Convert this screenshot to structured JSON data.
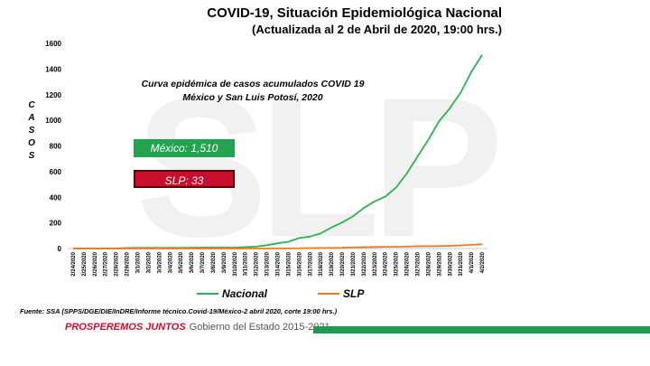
{
  "header": {
    "title": "COVID-19, Situación Epidemiológica Nacional",
    "subtitle": "(Actualizada al 2 de Abril de 2020, 19:00 hrs.)"
  },
  "watermark": "SLP",
  "colors": {
    "nacional": "#2bb34f",
    "slp": "#f07a22",
    "green_box": "#23a350",
    "red_box": "#c8102e"
  },
  "boxes": {
    "mexico": "México: 1,510",
    "slp": "SLP: 33"
  },
  "chart_data": {
    "type": "line",
    "title": "Curva epidémica de casos acumulados COVID 19",
    "subtitle": "México y San Luis Potosí, 2020",
    "ylabel": "CASOS",
    "ylabel_letters": [
      "C",
      "A",
      "S",
      "O",
      "S"
    ],
    "xlabel": "",
    "ylim": [
      0,
      1600
    ],
    "yticks": [
      0,
      200,
      400,
      600,
      800,
      1000,
      1200,
      1400,
      1600
    ],
    "categories": [
      "2/24/2020",
      "2/25/2020",
      "2/26/2020",
      "2/27/2020",
      "2/28/2020",
      "2/29/2020",
      "3/1/2020",
      "3/2/2020",
      "3/3/2020",
      "3/4/2020",
      "3/5/2020",
      "3/6/2020",
      "3/7/2020",
      "3/8/2020",
      "3/9/2020",
      "3/10/2020",
      "3/11/2020",
      "3/12/2020",
      "3/13/2020",
      "3/14/2020",
      "3/15/2020",
      "3/16/2020",
      "3/17/2020",
      "3/18/2020",
      "3/19/2020",
      "3/20/2020",
      "3/21/2020",
      "3/22/2020",
      "3/23/2020",
      "3/24/2020",
      "3/25/2020",
      "3/26/2020",
      "3/27/2020",
      "3/28/2020",
      "3/29/2020",
      "3/30/2020",
      "3/31/2020",
      "4/1/2020",
      "4/2/2020"
    ],
    "series": [
      {
        "name": "Nacional",
        "values": [
          0,
          0,
          0,
          0,
          1,
          4,
          5,
          5,
          5,
          5,
          5,
          6,
          7,
          7,
          7,
          7,
          11,
          15,
          26,
          41,
          53,
          82,
          93,
          118,
          164,
          203,
          251,
          316,
          367,
          405,
          475,
          585,
          717,
          848,
          993,
          1094,
          1215,
          1378,
          1510
        ]
      },
      {
        "name": "SLP",
        "values": [
          0,
          0,
          0,
          0,
          0,
          0,
          0,
          0,
          0,
          0,
          0,
          0,
          0,
          0,
          0,
          0,
          0,
          0,
          0,
          1,
          1,
          2,
          3,
          4,
          5,
          6,
          9,
          10,
          12,
          13,
          13,
          15,
          18,
          18,
          19,
          21,
          24,
          29,
          33
        ]
      }
    ]
  },
  "legend": {
    "nacional": "Nacional",
    "slp": "SLP"
  },
  "footer": {
    "source": "Fuente: SSA (SPPS/DGE/DIE/InDRE/Informe técnico.Covid-19/México-2 abril 2020, corte 19:00 hrs.)",
    "slogan": "PROSPEREMOS JUNTOS",
    "government": "Gobierno del Estado 2015-2021"
  }
}
